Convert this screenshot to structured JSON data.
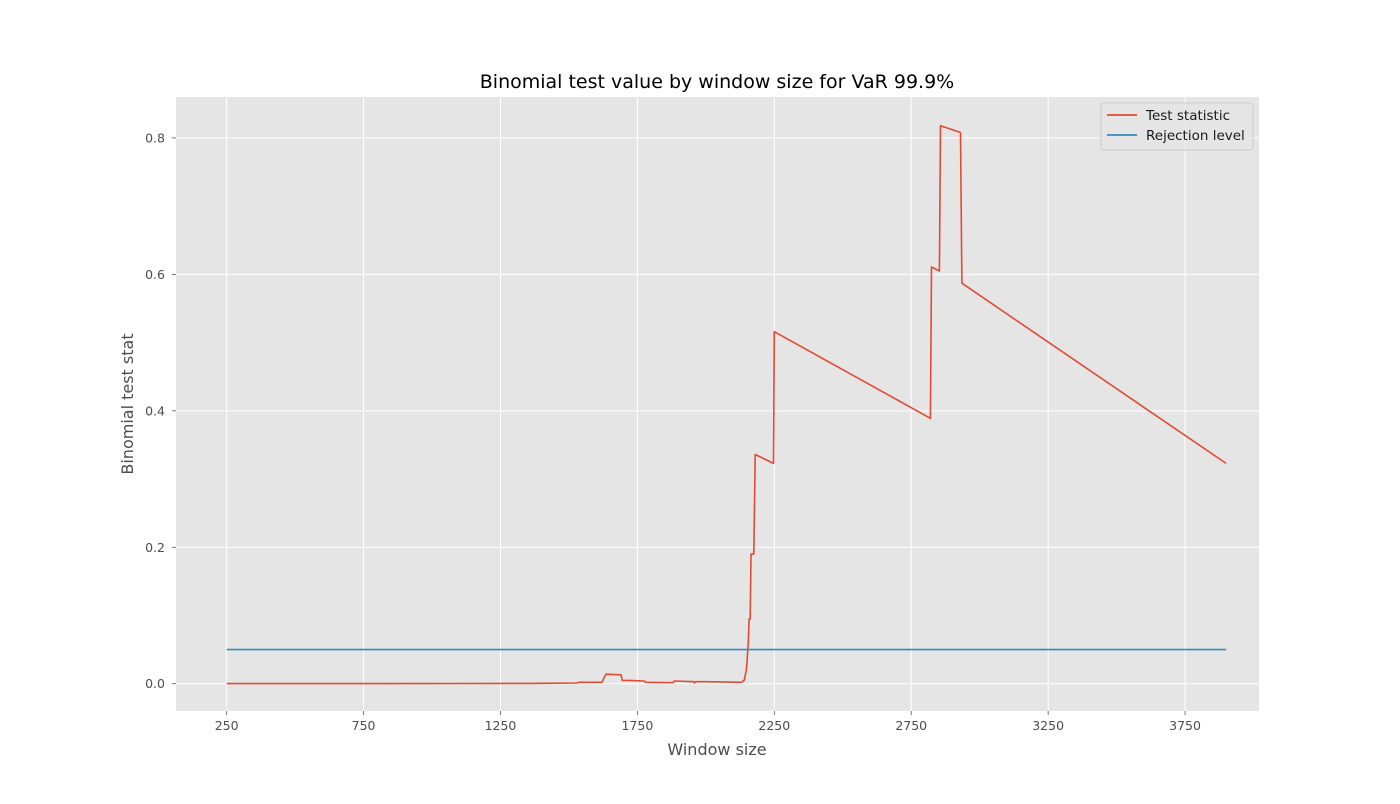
{
  "chart_data": {
    "type": "line",
    "title": "Binomial test value by window size for VaR 99.9%",
    "xlabel": "Window size",
    "ylabel": "Binomial test stat",
    "xlim": [
      65,
      4020
    ],
    "ylim": [
      -0.04,
      0.86
    ],
    "xticks": [
      250,
      750,
      1250,
      1750,
      2250,
      2750,
      3250,
      3750
    ],
    "yticks": [
      0.0,
      0.2,
      0.4,
      0.6,
      0.8
    ],
    "ytick_labels": [
      "0.0",
      "0.2",
      "0.4",
      "0.6",
      "0.8"
    ],
    "grid": true,
    "legend_position": "top-right",
    "series": [
      {
        "name": "Test statistic",
        "color": "#E24A33",
        "points": [
          [
            250,
            0.0001
          ],
          [
            700,
            0.0002
          ],
          [
            1100,
            0.0003
          ],
          [
            1350,
            0.0005
          ],
          [
            1530,
            0.001
          ],
          [
            1536,
            0.002
          ],
          [
            1620,
            0.002
          ],
          [
            1635,
            0.014
          ],
          [
            1690,
            0.013
          ],
          [
            1695,
            0.005
          ],
          [
            1775,
            0.004
          ],
          [
            1780,
            0.002
          ],
          [
            1880,
            0.0015
          ],
          [
            1885,
            0.004
          ],
          [
            1955,
            0.003
          ],
          [
            1958,
            0.001
          ],
          [
            1962,
            0.003
          ],
          [
            2000,
            0.003
          ],
          [
            2130,
            0.002
          ],
          [
            2140,
            0.005
          ],
          [
            2148,
            0.02
          ],
          [
            2155,
            0.06
          ],
          [
            2158,
            0.095
          ],
          [
            2162,
            0.095
          ],
          [
            2165,
            0.19
          ],
          [
            2175,
            0.19
          ],
          [
            2180,
            0.336
          ],
          [
            2247,
            0.323
          ],
          [
            2250,
            0.516
          ],
          [
            2820,
            0.389
          ],
          [
            2824,
            0.611
          ],
          [
            2853,
            0.605
          ],
          [
            2857,
            0.818
          ],
          [
            2930,
            0.808
          ],
          [
            2935,
            0.587
          ],
          [
            3900,
            0.323
          ]
        ]
      },
      {
        "name": "Rejection level",
        "color": "#348ABD",
        "points": [
          [
            250,
            0.05
          ],
          [
            3900,
            0.05
          ]
        ]
      }
    ]
  }
}
